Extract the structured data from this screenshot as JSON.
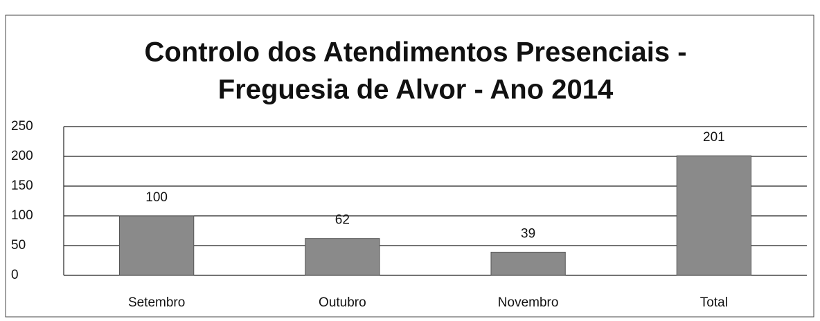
{
  "chart_data": {
    "type": "bar",
    "title": [
      "Controlo dos Atendimentos Presenciais -",
      "Freguesia de Alvor - Ano 2014"
    ],
    "categories": [
      "Setembro",
      "Outubro",
      "Novembro",
      "Total"
    ],
    "values": [
      100,
      62,
      39,
      201
    ],
    "color": "#8a8a8a",
    "ylim": [
      0,
      250
    ],
    "yticks": [
      0,
      50,
      100,
      150,
      200,
      250
    ],
    "grid": true
  }
}
